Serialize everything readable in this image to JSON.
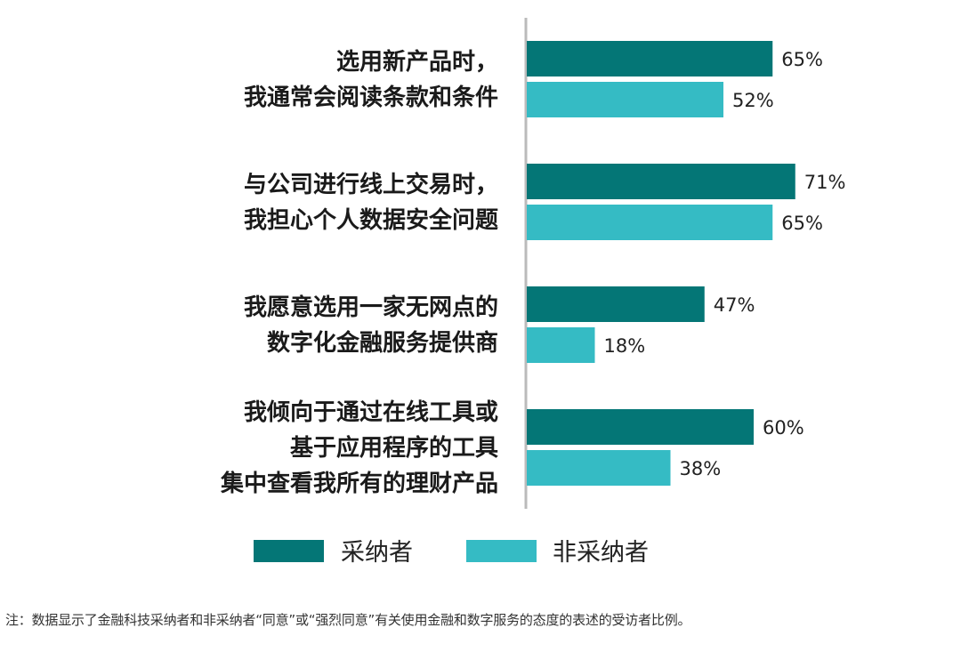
{
  "chart_data": {
    "type": "bar",
    "orientation": "horizontal",
    "categories": [
      [
        "选用新产品时，",
        "我通常会阅读条款和条件"
      ],
      [
        "与公司进行线上交易时，",
        "我担心个人数据安全问题"
      ],
      [
        "我愿意选用一家无网点的",
        "数字化金融服务提供商"
      ],
      [
        "我倾向于通过在线工具或",
        "基于应用程序的工具",
        "集中查看我所有的理财产品"
      ]
    ],
    "series": [
      {
        "name": "采纳者",
        "values": [
          65,
          71,
          47,
          60
        ],
        "labels": [
          "65%",
          "71%",
          "47%",
          "60%"
        ],
        "color": "#047676"
      },
      {
        "name": "非采纳者",
        "values": [
          52,
          65,
          18,
          38
        ],
        "labels": [
          "52%",
          "65%",
          "18%",
          "38%"
        ],
        "color": "#35BBC4"
      }
    ],
    "xlim": [
      0,
      100
    ],
    "grid": false,
    "legend_position": "bottom",
    "axis_color": "#BBBBBB"
  },
  "note": "注：数据显示了金融科技采纳者和非采纳者“同意”或“强烈同意”有关使用金融和数字服务的态度的表述的受访者比例。"
}
